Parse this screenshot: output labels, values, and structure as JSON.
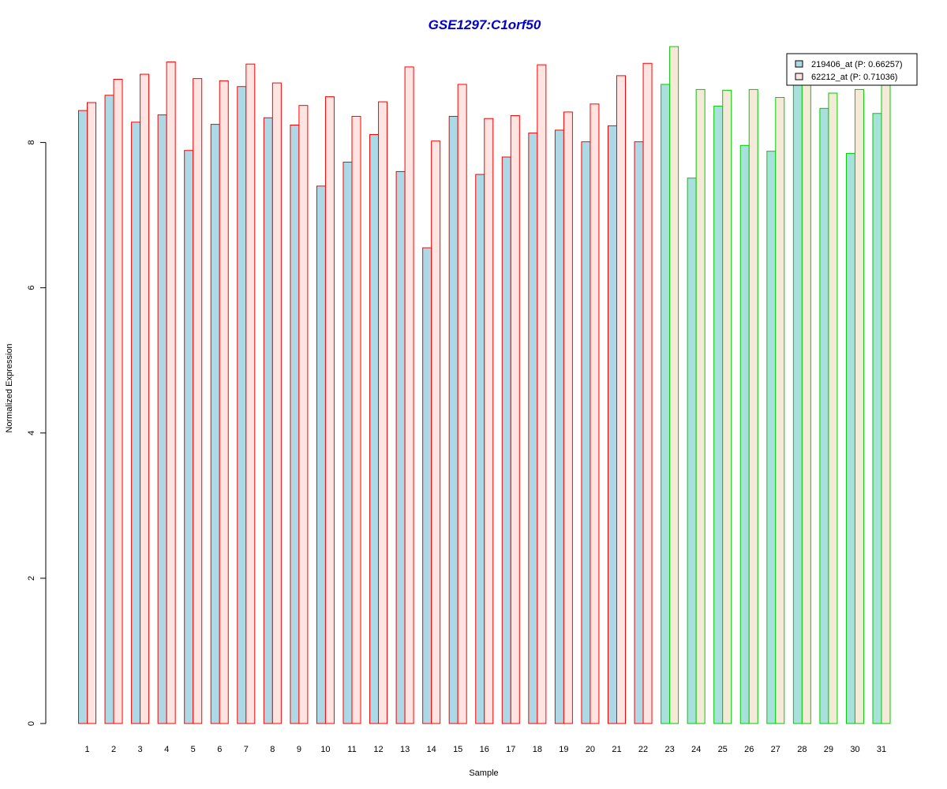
{
  "chart_data": {
    "type": "bar",
    "title": "GSE1297:C1orf50",
    "xlabel": "Sample",
    "ylabel": "Normalized Expression",
    "ylim": [
      0,
      9.35
    ],
    "y_ticks": [
      "0",
      "2",
      "4",
      "6",
      "8"
    ],
    "categories": [
      "1",
      "2",
      "3",
      "4",
      "5",
      "6",
      "7",
      "8",
      "9",
      "10",
      "11",
      "12",
      "13",
      "14",
      "15",
      "16",
      "17",
      "18",
      "19",
      "20",
      "21",
      "22",
      "23",
      "24",
      "25",
      "26",
      "27",
      "28",
      "29",
      "30",
      "31"
    ],
    "series": [
      {
        "name": "219406_at (P: 0.66257)",
        "fill": "#add8e6",
        "values": [
          8.44,
          8.65,
          8.28,
          8.38,
          7.89,
          8.25,
          8.77,
          8.34,
          8.24,
          7.4,
          7.73,
          8.11,
          7.6,
          6.55,
          8.36,
          7.56,
          7.8,
          8.13,
          8.17,
          8.01,
          8.23,
          8.01,
          8.8,
          7.51,
          8.5,
          7.96,
          7.88,
          8.9,
          8.47,
          7.85,
          8.4
        ]
      },
      {
        "name": "62212_at (P: 0.71036)",
        "fill": "#ffe4e1",
        "values": [
          8.55,
          8.87,
          8.94,
          9.11,
          8.88,
          8.85,
          9.08,
          8.82,
          8.51,
          8.63,
          8.36,
          8.56,
          9.04,
          8.02,
          8.8,
          8.33,
          8.37,
          9.07,
          8.42,
          8.53,
          8.92,
          9.09,
          9.32,
          8.73,
          8.72,
          8.73,
          8.62,
          8.9,
          8.68,
          8.73,
          8.9
        ]
      }
    ],
    "group_border_colors": [
      "#ff0000",
      "#ff0000",
      "#ff0000",
      "#ff0000",
      "#ff0000",
      "#ff0000",
      "#ff0000",
      "#ff0000",
      "#ff0000",
      "#ff0000",
      "#ff0000",
      "#ff0000",
      "#ff0000",
      "#ff0000",
      "#ff0000",
      "#ff0000",
      "#ff0000",
      "#ff0000",
      "#ff0000",
      "#ff0000",
      "#ff0000",
      "#ff0000",
      "#00cc00",
      "#00cc00",
      "#00cc00",
      "#00cc00",
      "#00cc00",
      "#00cc00",
      "#00cc00",
      "#00cc00",
      "#00cc00"
    ],
    "group2_fills": [
      "#a8e0dc",
      "#f5ead8"
    ],
    "legend_position": "top-right",
    "grid": false
  }
}
